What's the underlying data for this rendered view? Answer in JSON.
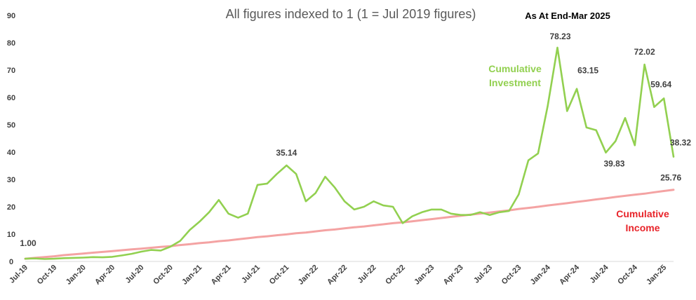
{
  "chart_data": {
    "type": "line",
    "title": "All figures indexed to 1 (1 = Jul 2019 figures)",
    "subtitle": "As At End-Mar 2025",
    "ylim": [
      0,
      90
    ],
    "yticks": [
      0,
      10,
      20,
      30,
      40,
      50,
      60,
      70,
      80,
      90
    ],
    "grid": false,
    "x_labels": [
      "Jul-19",
      "Oct-19",
      "Jan-20",
      "Apr-20",
      "Jul-20",
      "Oct-20",
      "Jan-21",
      "Apr-21",
      "Jul-21",
      "Oct-21",
      "Jan-22",
      "Apr-22",
      "Jul-22",
      "Oct-22",
      "Jan-23",
      "Apr-23",
      "Jul-23",
      "Oct-23",
      "Jan-24",
      "Apr-24",
      "Jul-24",
      "Oct-24",
      "Jan-25"
    ],
    "series": [
      {
        "name": "Cumulative Investment",
        "color": "#92d050",
        "values": [
          1.0,
          1.1,
          0.9,
          1.0,
          1.2,
          1.3,
          1.4,
          1.6,
          1.5,
          1.7,
          2.2,
          2.8,
          3.6,
          4.2,
          4.0,
          5.4,
          7.5,
          11.5,
          14.5,
          18.0,
          22.5,
          17.5,
          16.0,
          17.5,
          28.0,
          28.5,
          32.0,
          35.14,
          32.0,
          22.0,
          25.0,
          31.0,
          27.0,
          22.0,
          19.0,
          20.0,
          22.0,
          20.5,
          20.0,
          14.0,
          16.5,
          18.0,
          19.0,
          19.0,
          17.5,
          17.0,
          17.0,
          18.0,
          17.0,
          18.0,
          18.5,
          24.5,
          37.0,
          39.5,
          57.0,
          78.23,
          55.0,
          63.15,
          49.0,
          48.0,
          39.83,
          44.0,
          52.5,
          42.5,
          72.02,
          56.5,
          59.64,
          38.32
        ]
      },
      {
        "name": "Cumulative Income",
        "color": "#f4a3a3",
        "values": [
          1.0,
          1.3,
          1.6,
          1.9,
          2.3,
          2.6,
          2.9,
          3.2,
          3.5,
          3.8,
          4.1,
          4.4,
          4.7,
          5.0,
          5.3,
          5.6,
          6.0,
          6.3,
          6.7,
          7.0,
          7.4,
          7.7,
          8.1,
          8.5,
          8.9,
          9.2,
          9.6,
          9.9,
          10.3,
          10.6,
          11.0,
          11.4,
          11.7,
          12.1,
          12.5,
          12.8,
          13.2,
          13.6,
          14.0,
          14.3,
          14.7,
          15.1,
          15.5,
          15.9,
          16.3,
          16.7,
          17.1,
          17.5,
          17.9,
          18.3,
          18.7,
          19.2,
          19.6,
          20.0,
          20.5,
          20.9,
          21.3,
          21.8,
          22.2,
          22.7,
          23.1,
          23.6,
          24.0,
          24.4,
          24.8,
          25.3,
          25.76,
          26.2
        ]
      }
    ],
    "data_labels": [
      {
        "series": 0,
        "index": 0,
        "text": "1.00"
      },
      {
        "series": 0,
        "index": 27,
        "text": "35.14"
      },
      {
        "series": 0,
        "index": 55,
        "text": "78.23"
      },
      {
        "series": 0,
        "index": 57,
        "text": "63.15"
      },
      {
        "series": 0,
        "index": 60,
        "text": "39.83"
      },
      {
        "series": 0,
        "index": 64,
        "text": "72.02"
      },
      {
        "series": 0,
        "index": 66,
        "text": "59.64"
      },
      {
        "series": 0,
        "index": 67,
        "text": "38.32"
      },
      {
        "series": 1,
        "index": 66,
        "text": "25.76"
      }
    ],
    "series_labels": [
      {
        "lines": [
          "Cumulative",
          "Investment"
        ],
        "color": "#92d050"
      },
      {
        "lines": [
          "Cumulative",
          "Income"
        ],
        "color": "#e8242a"
      }
    ]
  }
}
